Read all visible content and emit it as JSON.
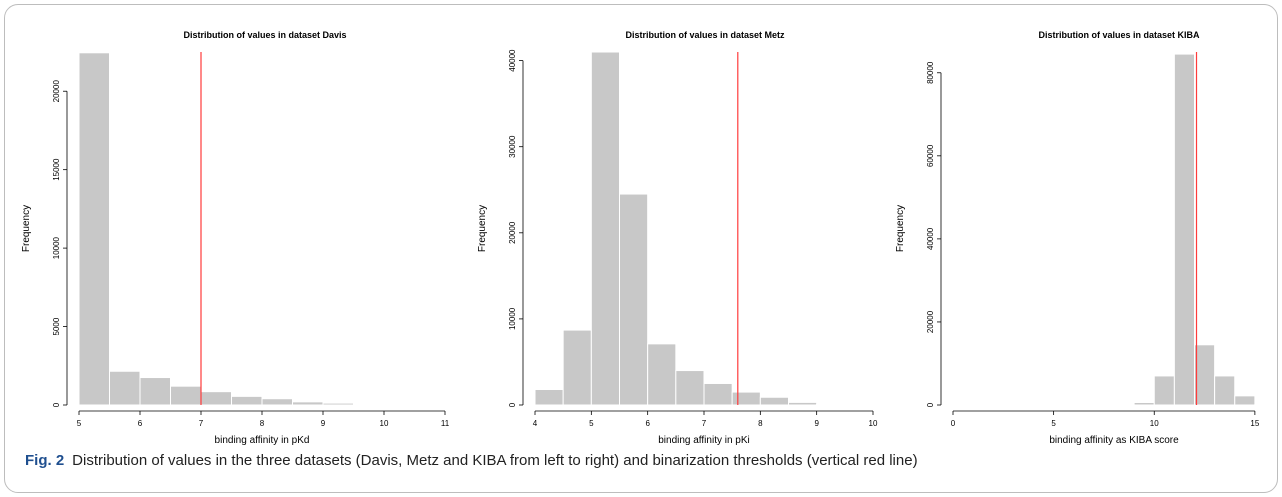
{
  "chart_data": [
    {
      "type": "bar",
      "title": "Distribution of values in dataset Davis",
      "xlabel": "binding affinity in pKd",
      "ylabel": "Frequency",
      "xlim": [
        5,
        11
      ],
      "ylim": [
        0,
        22500
      ],
      "xticks": [
        "5",
        "6",
        "7",
        "8",
        "9",
        "10",
        "11"
      ],
      "yticks": [
        "0",
        "5000",
        "10000",
        "15000",
        "20000"
      ],
      "bins": [
        [
          5.0,
          5.5
        ],
        [
          5.5,
          6.0
        ],
        [
          6.0,
          6.5
        ],
        [
          6.5,
          7.0
        ],
        [
          7.0,
          7.5
        ],
        [
          7.5,
          8.0
        ],
        [
          8.0,
          8.5
        ],
        [
          8.5,
          9.0
        ],
        [
          9.0,
          9.5
        ],
        [
          9.5,
          10.0
        ]
      ],
      "values": [
        22450,
        2150,
        1750,
        1200,
        850,
        550,
        400,
        200,
        120,
        30
      ],
      "threshold": 7.0,
      "grid": false
    },
    {
      "type": "bar",
      "title": "Distribution of values in dataset Metz",
      "xlabel": "binding affinity in pKi",
      "ylabel": "Frequency",
      "xlim": [
        4,
        10
      ],
      "ylim": [
        0,
        41000
      ],
      "xticks": [
        "4",
        "5",
        "6",
        "7",
        "8",
        "9",
        "10"
      ],
      "yticks": [
        "0",
        "10000",
        "20000",
        "30000",
        "40000"
      ],
      "bins": [
        [
          4.0,
          4.5
        ],
        [
          4.5,
          5.0
        ],
        [
          5.0,
          5.5
        ],
        [
          5.5,
          6.0
        ],
        [
          6.0,
          6.5
        ],
        [
          6.5,
          7.0
        ],
        [
          7.0,
          7.5
        ],
        [
          7.5,
          8.0
        ],
        [
          8.0,
          8.5
        ],
        [
          8.5,
          9.0
        ],
        [
          9.0,
          9.5
        ]
      ],
      "values": [
        1800,
        8700,
        41000,
        24500,
        7100,
        4000,
        2500,
        1500,
        900,
        300,
        80
      ],
      "threshold": 7.6,
      "grid": false
    },
    {
      "type": "bar",
      "title": "Distribution of values in dataset KIBA",
      "xlabel": "binding affinity as KIBA score",
      "ylabel": "Frequency",
      "xlim": [
        0,
        16
      ],
      "ylim": [
        0,
        85000
      ],
      "xticks": [
        "0",
        "5",
        "10",
        "15"
      ],
      "yticks": [
        "0",
        "20000",
        "40000",
        "60000",
        "80000"
      ],
      "bins": [
        [
          9,
          10
        ],
        [
          10,
          11
        ],
        [
          11,
          12
        ],
        [
          12,
          13
        ],
        [
          13,
          14
        ],
        [
          14,
          15
        ],
        [
          15,
          16
        ]
      ],
      "values": [
        600,
        7000,
        84500,
        14500,
        7000,
        2200,
        150
      ],
      "threshold": 12.1,
      "grid": false
    }
  ],
  "colors": {
    "bar_fill": "#c8c8c8",
    "bar_stroke": "#ffffff",
    "threshold_line": "#ff3b3b",
    "caption_label": "#1f4f8f"
  },
  "caption": {
    "label": "Fig. 2",
    "text": "Distribution of values in the three datasets (Davis, Metz and KIBA from left to right) and binarization thresholds (vertical red line)"
  }
}
